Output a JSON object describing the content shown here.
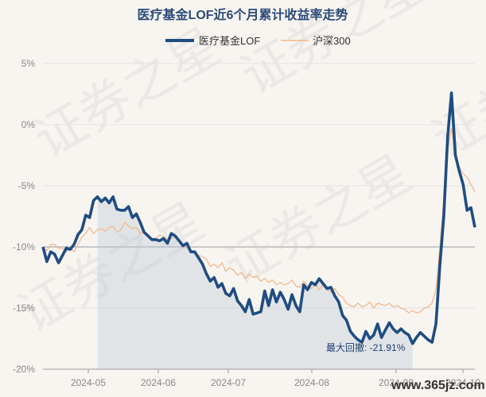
{
  "chart_data": {
    "type": "line",
    "title": "医疗基金LOF近6个月累计收益率走势",
    "legend": [
      "医疗基金LOF",
      "沪深300"
    ],
    "legend_position": "top",
    "x_ticks": [
      "2024-05",
      "2024-06",
      "2024-07",
      "2024-08",
      "2024-09",
      "2024-10"
    ],
    "y_ticks": [
      "5%",
      "0%",
      "-5%",
      "-10%",
      "-15%",
      "-20%"
    ],
    "ylim": [
      -20,
      6
    ],
    "grid": "horizontal",
    "max_drawdown_label": "最大回撤: -21.91%",
    "watermark": "证券之星",
    "site_watermark": "www.365jz.com",
    "series": [
      {
        "name": "医疗基金LOF",
        "color": "#1f4d82",
        "values": [
          -10.0,
          -11.2,
          -10.4,
          -10.6,
          -11.3,
          -10.7,
          -10.1,
          -10.2,
          -9.8,
          -9.0,
          -8.6,
          -7.4,
          -7.6,
          -6.2,
          -5.9,
          -6.3,
          -6.0,
          -6.4,
          -5.9,
          -6.9,
          -7.0,
          -7.0,
          -6.7,
          -7.6,
          -7.3,
          -8.0,
          -8.8,
          -9.1,
          -9.4,
          -9.4,
          -9.5,
          -9.3,
          -9.7,
          -8.9,
          -9.1,
          -9.5,
          -9.9,
          -9.7,
          -10.4,
          -10.4,
          -10.9,
          -11.4,
          -12.2,
          -12.8,
          -12.5,
          -13.3,
          -13.0,
          -13.8,
          -14.0,
          -13.4,
          -14.4,
          -14.8,
          -15.3,
          -14.3,
          -15.5,
          -15.4,
          -15.3,
          -13.6,
          -14.8,
          -13.5,
          -14.5,
          -13.7,
          -14.3,
          -15.1,
          -13.9,
          -14.8,
          -15.3,
          -13.1,
          -13.5,
          -12.9,
          -13.1,
          -12.6,
          -13.0,
          -13.4,
          -13.3,
          -14.0,
          -14.5,
          -15.6,
          -16.0,
          -16.9,
          -17.3,
          -17.6,
          -17.8,
          -16.9,
          -17.5,
          -17.2,
          -16.3,
          -17.4,
          -16.8,
          -16.2,
          -16.7,
          -17.0,
          -16.7,
          -17.0,
          -17.2,
          -17.9,
          -17.4,
          -17.0,
          -17.3,
          -17.6,
          -17.8,
          -16.3,
          -11.5,
          -7.5,
          -1.0,
          2.6,
          -2.5,
          -3.8,
          -4.9,
          -7.0,
          -6.8,
          -8.4
        ]
      },
      {
        "name": "沪深300",
        "color": "#f2b88e",
        "values": [
          -10.0,
          -10.3,
          -9.8,
          -9.8,
          -10.1,
          -10.1,
          -10.4,
          -10.0,
          -10.4,
          -9.8,
          -9.2,
          -8.9,
          -8.4,
          -8.9,
          -8.6,
          -8.5,
          -8.7,
          -8.4,
          -8.3,
          -8.8,
          -8.6,
          -8.0,
          -8.3,
          -8.5,
          -8.4,
          -8.9,
          -8.7,
          -9.2,
          -9.3,
          -9.3,
          -9.0,
          -9.2,
          -9.4,
          -9.3,
          -9.2,
          -9.6,
          -9.8,
          -10.1,
          -10.3,
          -10.6,
          -10.7,
          -10.8,
          -11.0,
          -11.6,
          -11.4,
          -11.7,
          -11.3,
          -12.0,
          -11.7,
          -11.9,
          -12.3,
          -12.1,
          -12.6,
          -12.2,
          -12.5,
          -12.4,
          -12.8,
          -12.6,
          -12.9,
          -12.7,
          -13.1,
          -12.9,
          -13.1,
          -13.0,
          -12.7,
          -13.2,
          -13.3,
          -12.8,
          -13.2,
          -13.4,
          -13.0,
          -13.5,
          -13.1,
          -13.5,
          -13.7,
          -13.4,
          -13.9,
          -14.1,
          -14.6,
          -14.8,
          -14.9,
          -14.6,
          -14.9,
          -14.8,
          -14.5,
          -15.0,
          -14.6,
          -14.7,
          -14.8,
          -14.6,
          -14.9,
          -14.8,
          -15.0,
          -15.1,
          -15.4,
          -15.2,
          -15.4,
          -15.3,
          -15.0,
          -14.9,
          -14.6,
          -13.5,
          -10.0,
          -6.2,
          -2.0,
          -0.3,
          -2.8,
          -3.5,
          -4.0,
          -4.3,
          -4.9,
          -5.5
        ]
      }
    ]
  }
}
